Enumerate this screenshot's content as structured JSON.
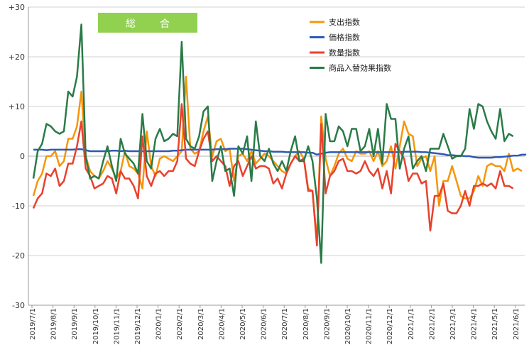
{
  "chart_data": {
    "type": "line",
    "title": "総　合",
    "banner_color": "#92d050",
    "ylim": [
      -30,
      30
    ],
    "y_ticks": [
      -30,
      -20,
      -10,
      0,
      10,
      20,
      30
    ],
    "y_tick_labels": [
      "-30",
      "-20",
      "-10",
      "0",
      "+10",
      "+20",
      "+30"
    ],
    "grid": "horizontal",
    "legend_position": "top-right",
    "x_tick_labels": [
      "2019/7/1",
      "2019/8/1",
      "2019/9/1",
      "2019/10/1",
      "2019/11/1",
      "2019/12/1",
      "2020/1/1",
      "2020/2/1",
      "2020/3/1",
      "2020/4/1",
      "2020/5/1",
      "2020/6/1",
      "2020/7/1",
      "2020/8/1",
      "2020/9/1",
      "2020/10/1",
      "2020/11/1",
      "2020/12/1",
      "2021/1/1",
      "2021/2/1",
      "2021/3/1",
      "2021/4/1",
      "2021/5/1",
      "2021/6/1"
    ],
    "series": [
      {
        "name": "支出指数",
        "color": "#f5960a",
        "values": [
          -8,
          -5,
          -3.5,
          0,
          0,
          1,
          -2,
          -1,
          3.5,
          3.5,
          6,
          13,
          0,
          -3,
          -4,
          -4.5,
          -3,
          -1,
          -2.5,
          -4.5,
          -3,
          1,
          -2,
          -2.5,
          -3.5,
          -6.5,
          5,
          -2,
          -4,
          -0.5,
          0,
          -0.5,
          -1,
          0,
          1,
          16,
          1.5,
          0.5,
          1,
          5,
          8,
          0,
          3,
          3.5,
          1,
          1.5,
          -5,
          0,
          0.5,
          -1,
          1,
          -1.5,
          -0.5,
          0.5,
          0,
          -1,
          -2,
          -3,
          -3.5,
          -1.5,
          0,
          1,
          -0.5,
          -6.5,
          -7,
          -17,
          8,
          -0.5,
          -4,
          -2,
          0.5,
          1.5,
          -0.5,
          -1,
          1,
          0.5,
          0.5,
          1,
          -1,
          1,
          -2,
          -1,
          2,
          -2.5,
          2,
          7,
          4.5,
          4,
          -2,
          -0.5,
          0,
          -3,
          0,
          -10,
          -5,
          -5,
          -2,
          -5,
          -8,
          -8.5,
          -8.5,
          -7,
          -4,
          -6,
          -2,
          -1.5,
          -2,
          -2,
          -3,
          0.5,
          -3,
          -2.5,
          -3
        ]
      },
      {
        "name": "価格指数",
        "color": "#2e59b8",
        "values": [
          1.3,
          1.3,
          1.3,
          1.2,
          1.3,
          1.3,
          1.3,
          1.3,
          1.3,
          1.3,
          1.4,
          1.4,
          1.2,
          1.0,
          1.0,
          1.0,
          1.0,
          1.0,
          1.1,
          1.1,
          1.0,
          1.1,
          1.0,
          1.0,
          1.0,
          1.0,
          1.0,
          1.0,
          1.0,
          1.0,
          1.0,
          1.0,
          1.1,
          1.1,
          1.2,
          1.3,
          1.3,
          1.3,
          1.3,
          1.3,
          1.3,
          1.3,
          1.4,
          1.4,
          1.4,
          1.5,
          1.5,
          1.5,
          1.5,
          1.4,
          1.3,
          1.2,
          1.1,
          1.0,
          1.0,
          0.9,
          0.9,
          0.9,
          0.8,
          0.8,
          0.8,
          0.8,
          0.8,
          0.7,
          0.7,
          0.3,
          0.5,
          0.7,
          0.8,
          0.8,
          0.8,
          0.8,
          0.8,
          0.8,
          0.8,
          0.8,
          0.8,
          0.8,
          0.8,
          0.8,
          0.8,
          0.8,
          0.8,
          0.8,
          0.8,
          0.9,
          0.9,
          0.9,
          0.9,
          0.8,
          0.8,
          0.7,
          0.6,
          0.5,
          0.4,
          0.2,
          0.2,
          0.1,
          0.1,
          0.0,
          0.0,
          -0.2,
          -0.3,
          -0.3,
          -0.3,
          -0.3,
          -0.2,
          -0.2,
          -0.1,
          0.0,
          0.1,
          0.1,
          0.3,
          0.3
        ]
      },
      {
        "name": "数量指数",
        "color": "#e8412d",
        "values": [
          -10.5,
          -8.5,
          -7.5,
          -3.5,
          -4,
          -2.5,
          -6,
          -5,
          -1.5,
          -1.5,
          2,
          7,
          -2.5,
          -4,
          -6.5,
          -6,
          -5.5,
          -4,
          -4.5,
          -7.5,
          -3,
          -4.5,
          -4.5,
          -6,
          -8.5,
          4,
          -4,
          -6,
          -3.5,
          -3,
          -4,
          -3,
          -3,
          -1,
          10.5,
          -0.5,
          -1.5,
          -2,
          1,
          3.5,
          5,
          -1,
          0,
          -1,
          -2,
          -6,
          -2,
          -1,
          -4,
          -2,
          0,
          -2.5,
          -2,
          -2,
          -2.5,
          -5.5,
          -4.5,
          -6.5,
          -3.5,
          -1.5,
          0,
          -1,
          -0.5,
          -7,
          -7,
          -18,
          6.5,
          -7.5,
          -4,
          -3,
          -1,
          -0.5,
          -3,
          -3,
          -3.5,
          -3,
          -1,
          -3,
          -4,
          -2.5,
          -6.5,
          -3,
          -7.5,
          2.5,
          1,
          -0.5,
          -5,
          -3.5,
          -3.5,
          -5.5,
          -5,
          -15,
          -8,
          -8,
          -5.5,
          -11,
          -11.5,
          -11.5,
          -10,
          -7,
          -10,
          -6,
          -6,
          -5.5,
          -6,
          -5.5,
          -6.5,
          -3,
          -6,
          -6,
          -6.5
        ]
      },
      {
        "name": "商品入替効果指数",
        "color": "#2a7b47",
        "values": [
          -4.5,
          1,
          2.5,
          6.5,
          6,
          5,
          4.5,
          5,
          13,
          12,
          16,
          26.5,
          0,
          -4.5,
          -4,
          -4.5,
          -1,
          2,
          -2,
          -5,
          3.5,
          0.5,
          -0.5,
          -1.5,
          -3.5,
          8.5,
          -1,
          -2.5,
          3.5,
          5.5,
          3,
          3.5,
          4.5,
          4,
          23,
          3.5,
          2,
          1.5,
          4,
          9,
          10,
          -5,
          -1,
          2,
          -3,
          -2.5,
          -8,
          2,
          0.5,
          4,
          -5,
          7,
          0,
          -1,
          1.5,
          -1.5,
          -3,
          -1,
          -3,
          1,
          4,
          -1,
          -1,
          2,
          -1,
          -8.5,
          -21.5,
          8.5,
          3,
          3,
          6,
          5,
          2,
          5.5,
          5.5,
          1,
          2,
          5.5,
          0,
          5.5,
          -1.5,
          10.5,
          7.5,
          7.5,
          -2.5,
          1.5,
          4,
          -2.5,
          -1,
          0,
          -3,
          1.5,
          1.5,
          1.5,
          4.5,
          2,
          -0.5,
          0,
          0,
          1.5,
          9.5,
          5.5,
          10.5,
          10,
          7,
          5,
          3.5,
          9.5,
          3,
          4.5,
          4
        ]
      }
    ]
  }
}
